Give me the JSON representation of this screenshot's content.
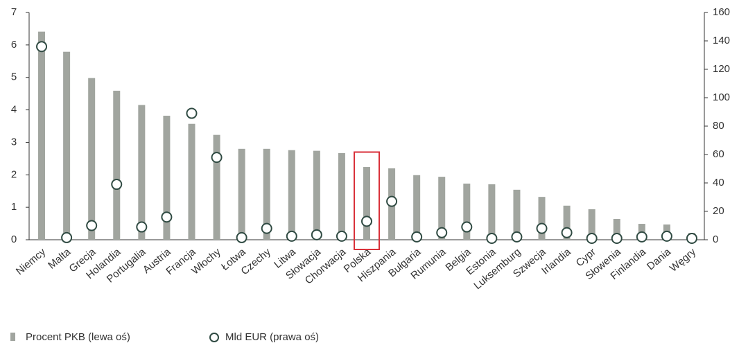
{
  "chart_data": {
    "type": "bar_dot",
    "categories": [
      "Niemcy",
      "Malta",
      "Grecja",
      "Holandia",
      "Portugalia",
      "Austria",
      "Francja",
      "Włochy",
      "Łotwa",
      "Czechy",
      "Litwa",
      "Słowacja",
      "Chorwacja",
      "Polska",
      "Hiszpania",
      "Bułgaria",
      "Rumunia",
      "Belgia",
      "Estonia",
      "Luksemburg",
      "Szwecja",
      "Irlandia",
      "Cypr",
      "Słowenia",
      "Finlandia",
      "Dania",
      "Węgry"
    ],
    "series": [
      {
        "name": "Procent PKB (lewa oś)",
        "color": "#a1a59f",
        "mark": "bar",
        "axis": "y",
        "values": [
          6.41,
          5.79,
          4.98,
          4.59,
          4.15,
          3.82,
          3.57,
          3.23,
          2.8,
          2.8,
          2.76,
          2.74,
          2.67,
          2.24,
          2.2,
          1.99,
          1.94,
          1.73,
          1.71,
          1.54,
          1.32,
          1.05,
          0.94,
          0.64,
          0.49,
          0.47,
          0.21
        ]
      },
      {
        "name": "Mld EUR (prawa oś)",
        "color": "#2f4a42",
        "mark": "circle",
        "axis": "y2",
        "values": [
          136,
          1.5,
          10,
          39,
          9,
          16,
          89,
          58,
          1.5,
          8,
          2.5,
          3.5,
          2.5,
          13,
          27,
          2,
          5,
          9,
          1,
          2,
          8,
          5,
          1,
          1,
          2,
          2.5,
          1
        ]
      }
    ],
    "ylim": [
      0,
      7
    ],
    "yticks": [
      0,
      1,
      2,
      3,
      4,
      5,
      6,
      7
    ],
    "y2lim": [
      0,
      160
    ],
    "y2ticks": [
      0,
      20,
      40,
      60,
      80,
      100,
      120,
      140,
      160
    ],
    "highlight": "Polska",
    "highlight_color": "#d9313a",
    "grid": false
  }
}
